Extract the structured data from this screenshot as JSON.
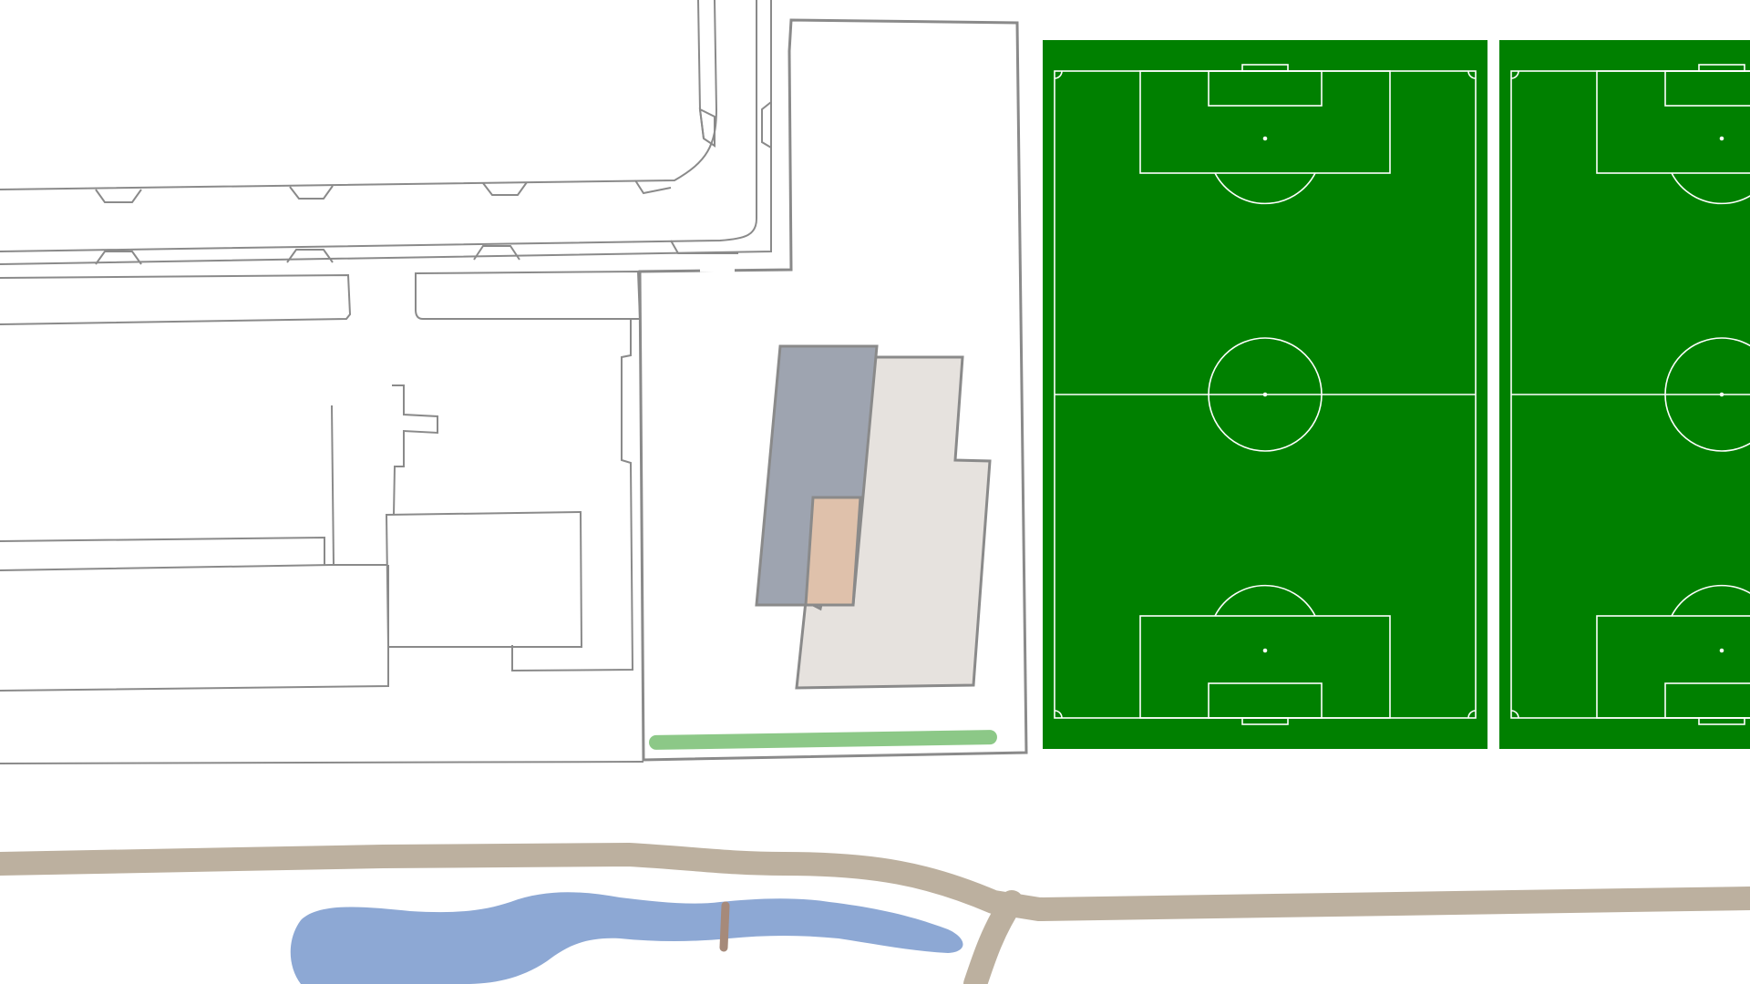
{
  "map": {
    "background_color": "#ffffff",
    "outline_color": "#8a8a8a",
    "colors": {
      "building_blue": "#9ea4b0",
      "building_light": "#e6e2de",
      "building_peach": "#dfc1ab",
      "hedge": "#7fc27a",
      "path": "#bcb09f",
      "water": "#8da8d4",
      "bridge": "#a68a7a",
      "pitch_green": "#008000",
      "pitch_lines": "#ffffff"
    },
    "features": [
      "street-outlines",
      "school-site-boundary",
      "main-building",
      "building-annex",
      "building-connector",
      "hedge-strip",
      "football-pitch-1",
      "football-pitch-2",
      "footpath",
      "pond",
      "footbridge"
    ]
  }
}
